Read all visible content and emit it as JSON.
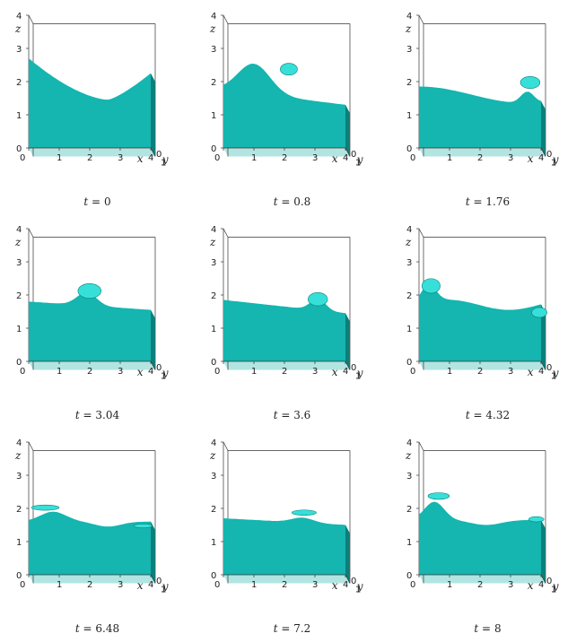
{
  "axes": {
    "x_label": "x",
    "y_label": "y",
    "z_label": "z",
    "x_ticks": [
      "0",
      "1",
      "2",
      "3",
      "4"
    ],
    "y_ticks": [
      "0",
      "1"
    ],
    "z_ticks": [
      "0",
      "1",
      "2",
      "3",
      "4"
    ]
  },
  "colors": {
    "fluid_front": "#15b5b0",
    "fluid_top": "#2ad3cc",
    "fluid_side": "#0d7f7b",
    "fluid_bottom": "#72cfcb",
    "crest": "#36e0d8",
    "frame": "#333333"
  },
  "panels": [
    {
      "t_prefix": "t = ",
      "t_value": "0"
    },
    {
      "t_prefix": "t = ",
      "t_value": "0.8"
    },
    {
      "t_prefix": "t = ",
      "t_value": "1.76"
    },
    {
      "t_prefix": "t = ",
      "t_value": "3.04"
    },
    {
      "t_prefix": "t = ",
      "t_value": "3.6"
    },
    {
      "t_prefix": "t = ",
      "t_value": "4.32"
    },
    {
      "t_prefix": "t = ",
      "t_value": "6.48"
    },
    {
      "t_prefix": "t = ",
      "t_value": "7.2"
    },
    {
      "t_prefix": "t = ",
      "t_value": "8"
    }
  ]
}
